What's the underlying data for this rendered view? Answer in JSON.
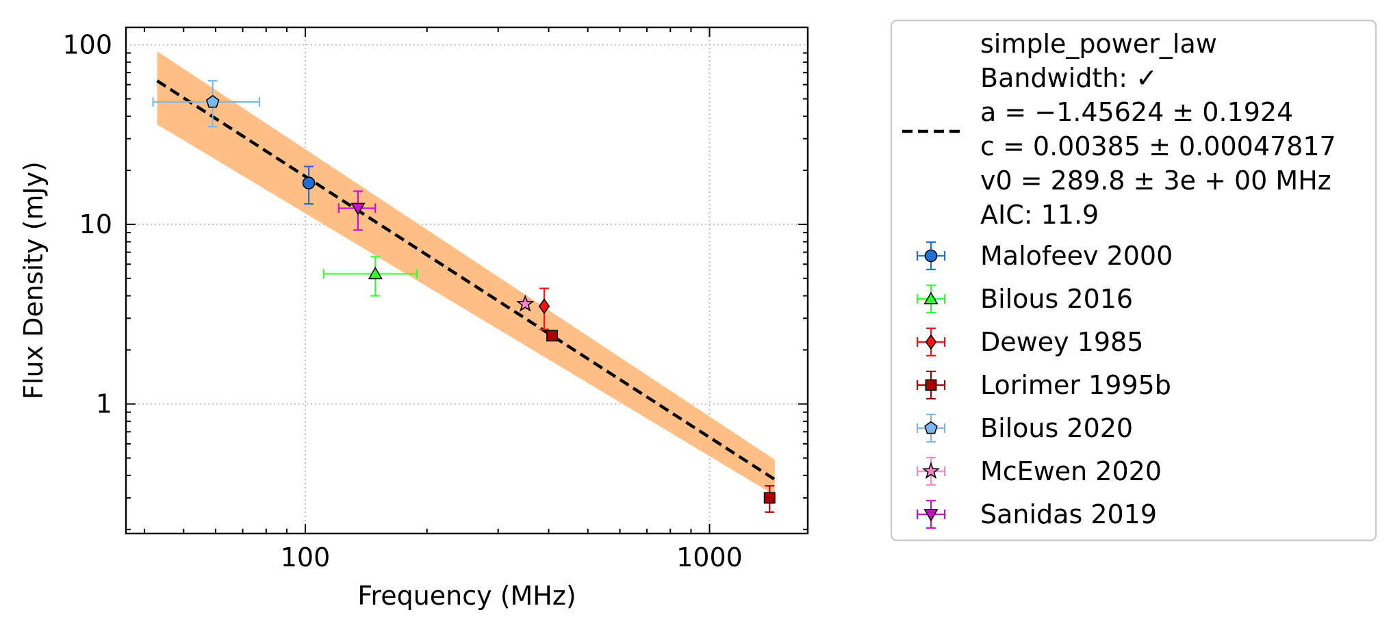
{
  "chart_data": {
    "type": "scatter",
    "xlabel": "Frequency (MHz)",
    "ylabel": "Flux Density (mJy)",
    "x_scale": "log",
    "y_scale": "log",
    "xlim": [
      36,
      1750
    ],
    "ylim": [
      0.19,
      125
    ],
    "x_ticks": [
      {
        "value": 100,
        "label": "100"
      },
      {
        "value": 1000,
        "label": "1000"
      }
    ],
    "y_ticks": [
      {
        "value": 1,
        "label": "1"
      },
      {
        "value": 10,
        "label": "10"
      },
      {
        "value": 100,
        "label": "100"
      }
    ],
    "grid": true,
    "legend_position": "outside-right",
    "fit": {
      "name": "simple_power_law",
      "legend_lines": [
        "simple_power_law",
        "Bandwidth: ✓",
        "a = −1.45624 ± 0.1924",
        "c = 0.00385 ± 0.00047817",
        "v0 = 289.8 ± 3e + 00 MHz",
        "AIC: 11.9"
      ],
      "a": -1.45624,
      "c": 0.00385,
      "v0": 289.8,
      "x": [
        43,
        1450
      ],
      "y": [
        63,
        0.38
      ],
      "band_lower": [
        36,
        0.31
      ],
      "band_upper": [
        92,
        0.49
      ],
      "line_color": "#000000",
      "band_color": "#ffbf86"
    },
    "series": [
      {
        "name": "Malofeev 2000",
        "marker": "circle",
        "color": "#1f6fd6",
        "points": [
          {
            "x": 102,
            "y": 17.0,
            "xerr": [
              0,
              0
            ],
            "yerr": [
              4.0,
              4.0
            ]
          }
        ]
      },
      {
        "name": "Bilous 2016",
        "marker": "triangle-up",
        "color": "#33ff33",
        "points": [
          {
            "x": 149,
            "y": 5.3,
            "xerr": [
              38,
              40
            ],
            "yerr": [
              1.3,
              1.3
            ]
          }
        ]
      },
      {
        "name": "Dewey 1985",
        "marker": "diamond",
        "color": "#ff1111",
        "points": [
          {
            "x": 390,
            "y": 3.5,
            "xerr": [
              0,
              0
            ],
            "yerr": [
              0.9,
              0.9
            ]
          }
        ]
      },
      {
        "name": "Lorimer 1995b",
        "marker": "square",
        "color": "#aa0000",
        "points": [
          {
            "x": 408,
            "y": 2.4,
            "xerr": [
              0,
              0
            ],
            "yerr": [
              0.1,
              0.1
            ]
          },
          {
            "x": 1408,
            "y": 0.3,
            "xerr": [
              0,
              0
            ],
            "yerr": [
              0.05,
              0.05
            ]
          }
        ]
      },
      {
        "name": "Bilous 2020",
        "marker": "pentagon",
        "color": "#7ab8ee",
        "points": [
          {
            "x": 59,
            "y": 48.0,
            "xerr": [
              17,
              18
            ],
            "yerr": [
              13,
              15
            ]
          }
        ]
      },
      {
        "name": "McEwen 2020",
        "marker": "star",
        "color": "#ff88cc",
        "points": [
          {
            "x": 350,
            "y": 3.6,
            "xerr": [
              0,
              0
            ],
            "yerr": [
              0.2,
              0.2
            ]
          }
        ]
      },
      {
        "name": "Sanidas 2019",
        "marker": "triangle-down",
        "color": "#cc11cc",
        "points": [
          {
            "x": 135,
            "y": 12.3,
            "xerr": [
              14,
              14
            ],
            "yerr": [
              3.0,
              3.0
            ]
          }
        ]
      }
    ]
  }
}
